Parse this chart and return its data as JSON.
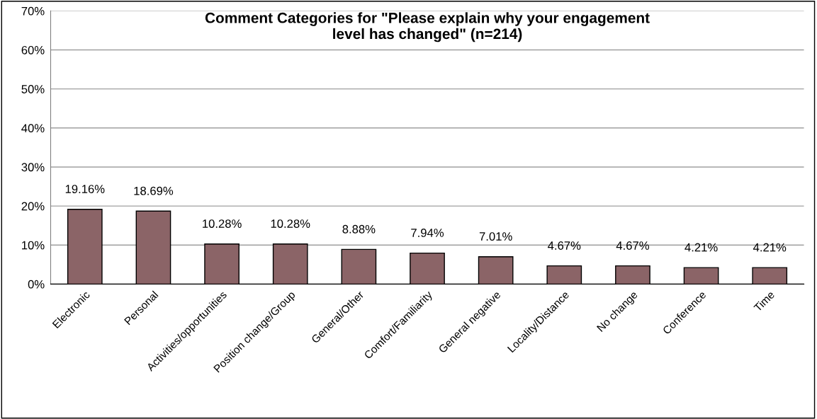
{
  "chart_data": {
    "type": "bar",
    "title": "Comment Categories for \"Please explain why your engagement\nlevel has changed\" (n=214)",
    "categories": [
      "Electronic",
      "Personal",
      "Activities/opportunities",
      "Position change/Group",
      "General/Other",
      "Comfort/Familiarity",
      "General negative",
      "Locality/Distance",
      "No change",
      "Conference",
      "Time"
    ],
    "values": [
      19.16,
      18.69,
      10.28,
      10.28,
      8.88,
      7.94,
      7.01,
      4.67,
      4.67,
      4.21,
      4.21
    ],
    "value_labels": [
      "19.16%",
      "18.69%",
      "10.28%",
      "10.28%",
      "8.88%",
      "7.94%",
      "7.01%",
      "4.67%",
      "4.67%",
      "4.21%",
      "4.21%"
    ],
    "color": "#8b6467",
    "ylim": [
      0,
      70
    ],
    "yticks": [
      {
        "value": 0,
        "label": "0%"
      },
      {
        "value": 10,
        "label": "10%"
      },
      {
        "value": 20,
        "label": "20%"
      },
      {
        "value": 30,
        "label": "30%"
      },
      {
        "value": 40,
        "label": "40%"
      },
      {
        "value": 50,
        "label": "50%"
      },
      {
        "value": 60,
        "label": "60%"
      },
      {
        "value": 70,
        "label": "70%"
      }
    ],
    "grid": "y",
    "legend": false
  }
}
